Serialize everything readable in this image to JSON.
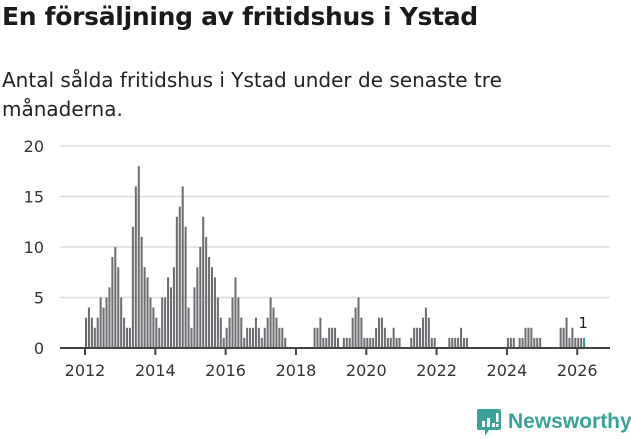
{
  "header": {
    "title": "En försäljning av fritidshus i Ystad",
    "subtitle": "Antal sålda fritidshus i Ystad under de senaste tre månaderna."
  },
  "brand": {
    "name": "Newsworthy",
    "color": "#3aa399"
  },
  "colors": {
    "bar": "#6d6c71",
    "highlight": "#1e9e92",
    "grid": "#dddddd",
    "axis": "#444444"
  },
  "chart_data": {
    "type": "bar",
    "title": "En försäljning av fritidshus i Ystad",
    "subtitle": "Antal sålda fritidshus i Ystad under de senaste tre månaderna.",
    "xlabel": "",
    "ylabel": "",
    "ylim": [
      0,
      20
    ],
    "yticks": [
      0,
      5,
      10,
      15,
      20
    ],
    "xticks": [
      "2012",
      "2014",
      "2016",
      "2018",
      "2020",
      "2022",
      "2024",
      "2026"
    ],
    "grid": true,
    "start": "2012-01",
    "frequency": "monthly",
    "annotation": {
      "label": "1",
      "index": "last"
    },
    "values": [
      3,
      4,
      3,
      2,
      3,
      5,
      4,
      5,
      6,
      9,
      10,
      8,
      5,
      3,
      2,
      2,
      12,
      16,
      18,
      11,
      8,
      7,
      5,
      4,
      3,
      2,
      5,
      5,
      7,
      6,
      8,
      13,
      14,
      16,
      12,
      4,
      2,
      6,
      8,
      10,
      13,
      11,
      9,
      8,
      7,
      5,
      3,
      1,
      2,
      3,
      5,
      7,
      5,
      3,
      1,
      2,
      2,
      2,
      3,
      2,
      1,
      2,
      3,
      5,
      4,
      3,
      2,
      2,
      1,
      0,
      0,
      0,
      0,
      0,
      0,
      0,
      0,
      0,
      2,
      2,
      3,
      1,
      1,
      2,
      2,
      2,
      1,
      0,
      1,
      1,
      1,
      3,
      4,
      5,
      3,
      1,
      1,
      1,
      1,
      2,
      3,
      3,
      2,
      1,
      1,
      2,
      1,
      1,
      0,
      0,
      0,
      1,
      2,
      2,
      2,
      3,
      4,
      3,
      1,
      1,
      0,
      0,
      0,
      0,
      1,
      1,
      1,
      1,
      2,
      1,
      1,
      0,
      0,
      0,
      0,
      0,
      0,
      0,
      0,
      0,
      0,
      0,
      0,
      0,
      1,
      1,
      1,
      0,
      1,
      1,
      2,
      2,
      2,
      1,
      1,
      1,
      0,
      0,
      0,
      0,
      0,
      0,
      2,
      2,
      3,
      1,
      2,
      1,
      1,
      1,
      1
    ]
  }
}
